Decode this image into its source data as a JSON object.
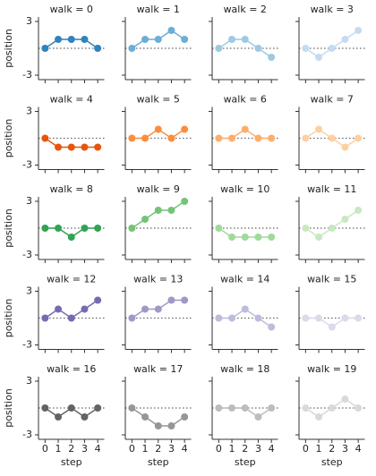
{
  "chart_data": {
    "type": "line",
    "xlabel": "step",
    "ylabel": "position",
    "x": [
      0,
      1,
      2,
      3,
      4
    ],
    "xlim": [
      -0.5,
      4.5
    ],
    "ylim": [
      -3.5,
      3.5
    ],
    "xticks": [
      0,
      1,
      2,
      3,
      4
    ],
    "yticks": [
      -3,
      3
    ],
    "hline": 0,
    "columns": 4,
    "series": [
      {
        "name": "walk = 0",
        "color": "#3182bd",
        "values": [
          0,
          1,
          1,
          1,
          0
        ]
      },
      {
        "name": "walk = 1",
        "color": "#6baed6",
        "values": [
          0,
          1,
          1,
          2,
          1
        ]
      },
      {
        "name": "walk = 2",
        "color": "#9ecae1",
        "values": [
          0,
          1,
          1,
          0,
          -1
        ]
      },
      {
        "name": "walk = 3",
        "color": "#c6dbef",
        "values": [
          0,
          -1,
          0,
          1,
          2
        ]
      },
      {
        "name": "walk = 4",
        "color": "#e6550d",
        "values": [
          0,
          -1,
          -1,
          -1,
          -1
        ]
      },
      {
        "name": "walk = 5",
        "color": "#fd8d3c",
        "values": [
          0,
          0,
          1,
          0,
          1
        ]
      },
      {
        "name": "walk = 6",
        "color": "#fdae6b",
        "values": [
          0,
          0,
          1,
          0,
          0
        ]
      },
      {
        "name": "walk = 7",
        "color": "#fdd0a2",
        "values": [
          0,
          1,
          0,
          -1,
          0
        ]
      },
      {
        "name": "walk = 8",
        "color": "#31a354",
        "values": [
          0,
          0,
          -1,
          0,
          0
        ]
      },
      {
        "name": "walk = 9",
        "color": "#74c476",
        "values": [
          0,
          1,
          2,
          2,
          3
        ]
      },
      {
        "name": "walk = 10",
        "color": "#a1d99b",
        "values": [
          0,
          -1,
          -1,
          -1,
          -1
        ]
      },
      {
        "name": "walk = 11",
        "color": "#c7e9c0",
        "values": [
          0,
          -1,
          0,
          1,
          2
        ]
      },
      {
        "name": "walk = 12",
        "color": "#756bb1",
        "values": [
          0,
          1,
          0,
          1,
          2
        ]
      },
      {
        "name": "walk = 13",
        "color": "#9e9ac8",
        "values": [
          0,
          1,
          1,
          2,
          2
        ]
      },
      {
        "name": "walk = 14",
        "color": "#bcbddc",
        "values": [
          0,
          0,
          1,
          0,
          -1
        ]
      },
      {
        "name": "walk = 15",
        "color": "#dadaeb",
        "values": [
          0,
          0,
          -1,
          0,
          0
        ]
      },
      {
        "name": "walk = 16",
        "color": "#636363",
        "values": [
          0,
          -1,
          0,
          -1,
          0
        ]
      },
      {
        "name": "walk = 17",
        "color": "#969696",
        "values": [
          0,
          -1,
          -2,
          -2,
          -1
        ]
      },
      {
        "name": "walk = 18",
        "color": "#bdbdbd",
        "values": [
          0,
          0,
          0,
          -1,
          0
        ]
      },
      {
        "name": "walk = 19",
        "color": "#d9d9d9",
        "values": [
          0,
          -1,
          0,
          1,
          0
        ]
      }
    ]
  }
}
